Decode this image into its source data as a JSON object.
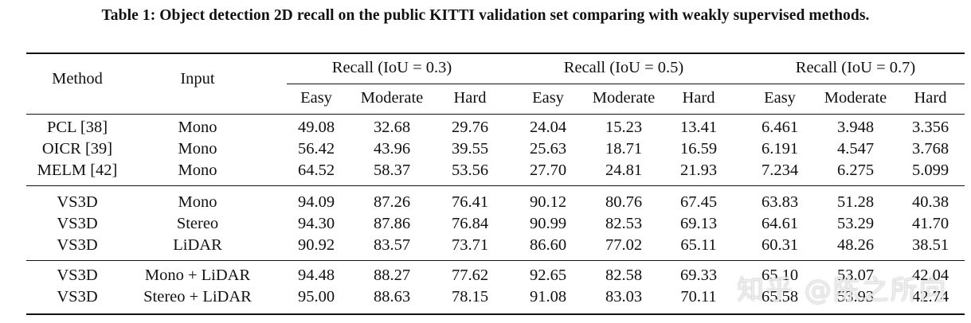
{
  "caption": "Table 1: Object detection 2D recall on the public KITTI validation set comparing with weakly supervised methods.",
  "headers": {
    "method": "Method",
    "input": "Input",
    "groups": [
      "Recall (IoU = 0.3)",
      "Recall (IoU = 0.5)",
      "Recall (IoU = 0.7)"
    ],
    "sub": [
      "Easy",
      "Moderate",
      "Hard",
      "Easy",
      "Moderate",
      "Hard",
      "Easy",
      "Moderate",
      "Hard"
    ]
  },
  "rows": [
    {
      "method": "PCL [38]",
      "input": "Mono",
      "values": [
        "49.08",
        "32.68",
        "29.76",
        "24.04",
        "15.23",
        "13.41",
        "6.461",
        "3.948",
        "3.356"
      ]
    },
    {
      "method": "OICR [39]",
      "input": "Mono",
      "values": [
        "56.42",
        "43.96",
        "39.55",
        "25.63",
        "18.71",
        "16.59",
        "6.191",
        "4.547",
        "3.768"
      ]
    },
    {
      "method": "MELM [42]",
      "input": "Mono",
      "values": [
        "64.52",
        "58.37",
        "53.56",
        "27.70",
        "24.81",
        "21.93",
        "7.234",
        "6.275",
        "5.099"
      ]
    },
    {
      "method": "VS3D",
      "input": "Mono",
      "values": [
        "94.09",
        "87.26",
        "76.41",
        "90.12",
        "80.76",
        "67.45",
        "63.83",
        "51.28",
        "40.38"
      ]
    },
    {
      "method": "VS3D",
      "input": "Stereo",
      "values": [
        "94.30",
        "87.86",
        "76.84",
        "90.99",
        "82.53",
        "69.13",
        "64.61",
        "53.29",
        "41.70"
      ]
    },
    {
      "method": "VS3D",
      "input": "LiDAR",
      "values": [
        "90.92",
        "83.57",
        "73.71",
        "86.60",
        "77.02",
        "65.11",
        "60.31",
        "48.26",
        "38.51"
      ]
    },
    {
      "method": "VS3D",
      "input": "Mono + LiDAR",
      "values": [
        "94.48",
        "88.27",
        "77.62",
        "92.65",
        "82.58",
        "69.33",
        "65.10",
        "53.07",
        "42.04"
      ]
    },
    {
      "method": "VS3D",
      "input": "Stereo + LiDAR",
      "values": [
        "95.00",
        "88.63",
        "78.15",
        "91.08",
        "83.03",
        "70.11",
        "65.58",
        "53.93",
        "42.74"
      ]
    }
  ],
  "watermark": "知乎 @陈之所向"
}
